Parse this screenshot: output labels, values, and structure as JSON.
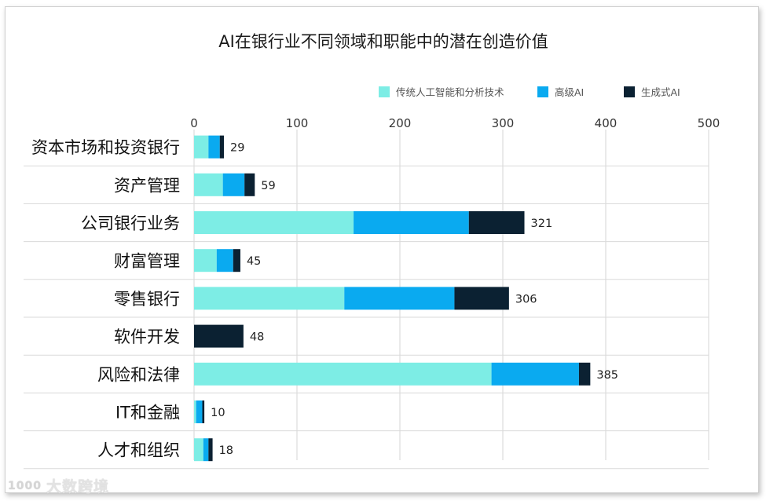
{
  "chart_data": {
    "type": "bar",
    "orientation": "horizontal",
    "stacked": true,
    "title": "AI在银行业不同领域和职能中的潜在创造价值",
    "categories": [
      "资本市场和投资银行",
      "资产管理",
      "公司银行业务",
      "财富管理",
      "零售银行",
      "软件开发",
      "风险和法律",
      "IT和金融",
      "人才和组织"
    ],
    "series": [
      {
        "name": "传统人工智能和分析技术",
        "color": "#7DEDE5",
        "values": [
          14,
          28,
          155,
          22,
          146,
          0,
          289,
          2,
          9
        ]
      },
      {
        "name": "高级AI",
        "color": "#0AAAF0",
        "values": [
          11,
          21,
          112,
          16,
          107,
          0,
          85,
          6,
          5
        ]
      },
      {
        "name": "生成式AI",
        "color": "#0B2132",
        "values": [
          4,
          10,
          54,
          7,
          53,
          48,
          11,
          2,
          4
        ]
      }
    ],
    "totals": [
      29,
      59,
      321,
      45,
      306,
      48,
      385,
      10,
      18
    ],
    "xlim": [
      0,
      500
    ],
    "xticks": [
      0,
      100,
      200,
      300,
      400,
      500
    ],
    "xtick_labels": [
      "0",
      "100",
      "200",
      "300",
      "400",
      "500"
    ],
    "grid": true,
    "legend_position": "top-right",
    "xlabel": "",
    "ylabel": ""
  },
  "watermark": {
    "logo_text": "1000",
    "text": "大数跨境"
  }
}
